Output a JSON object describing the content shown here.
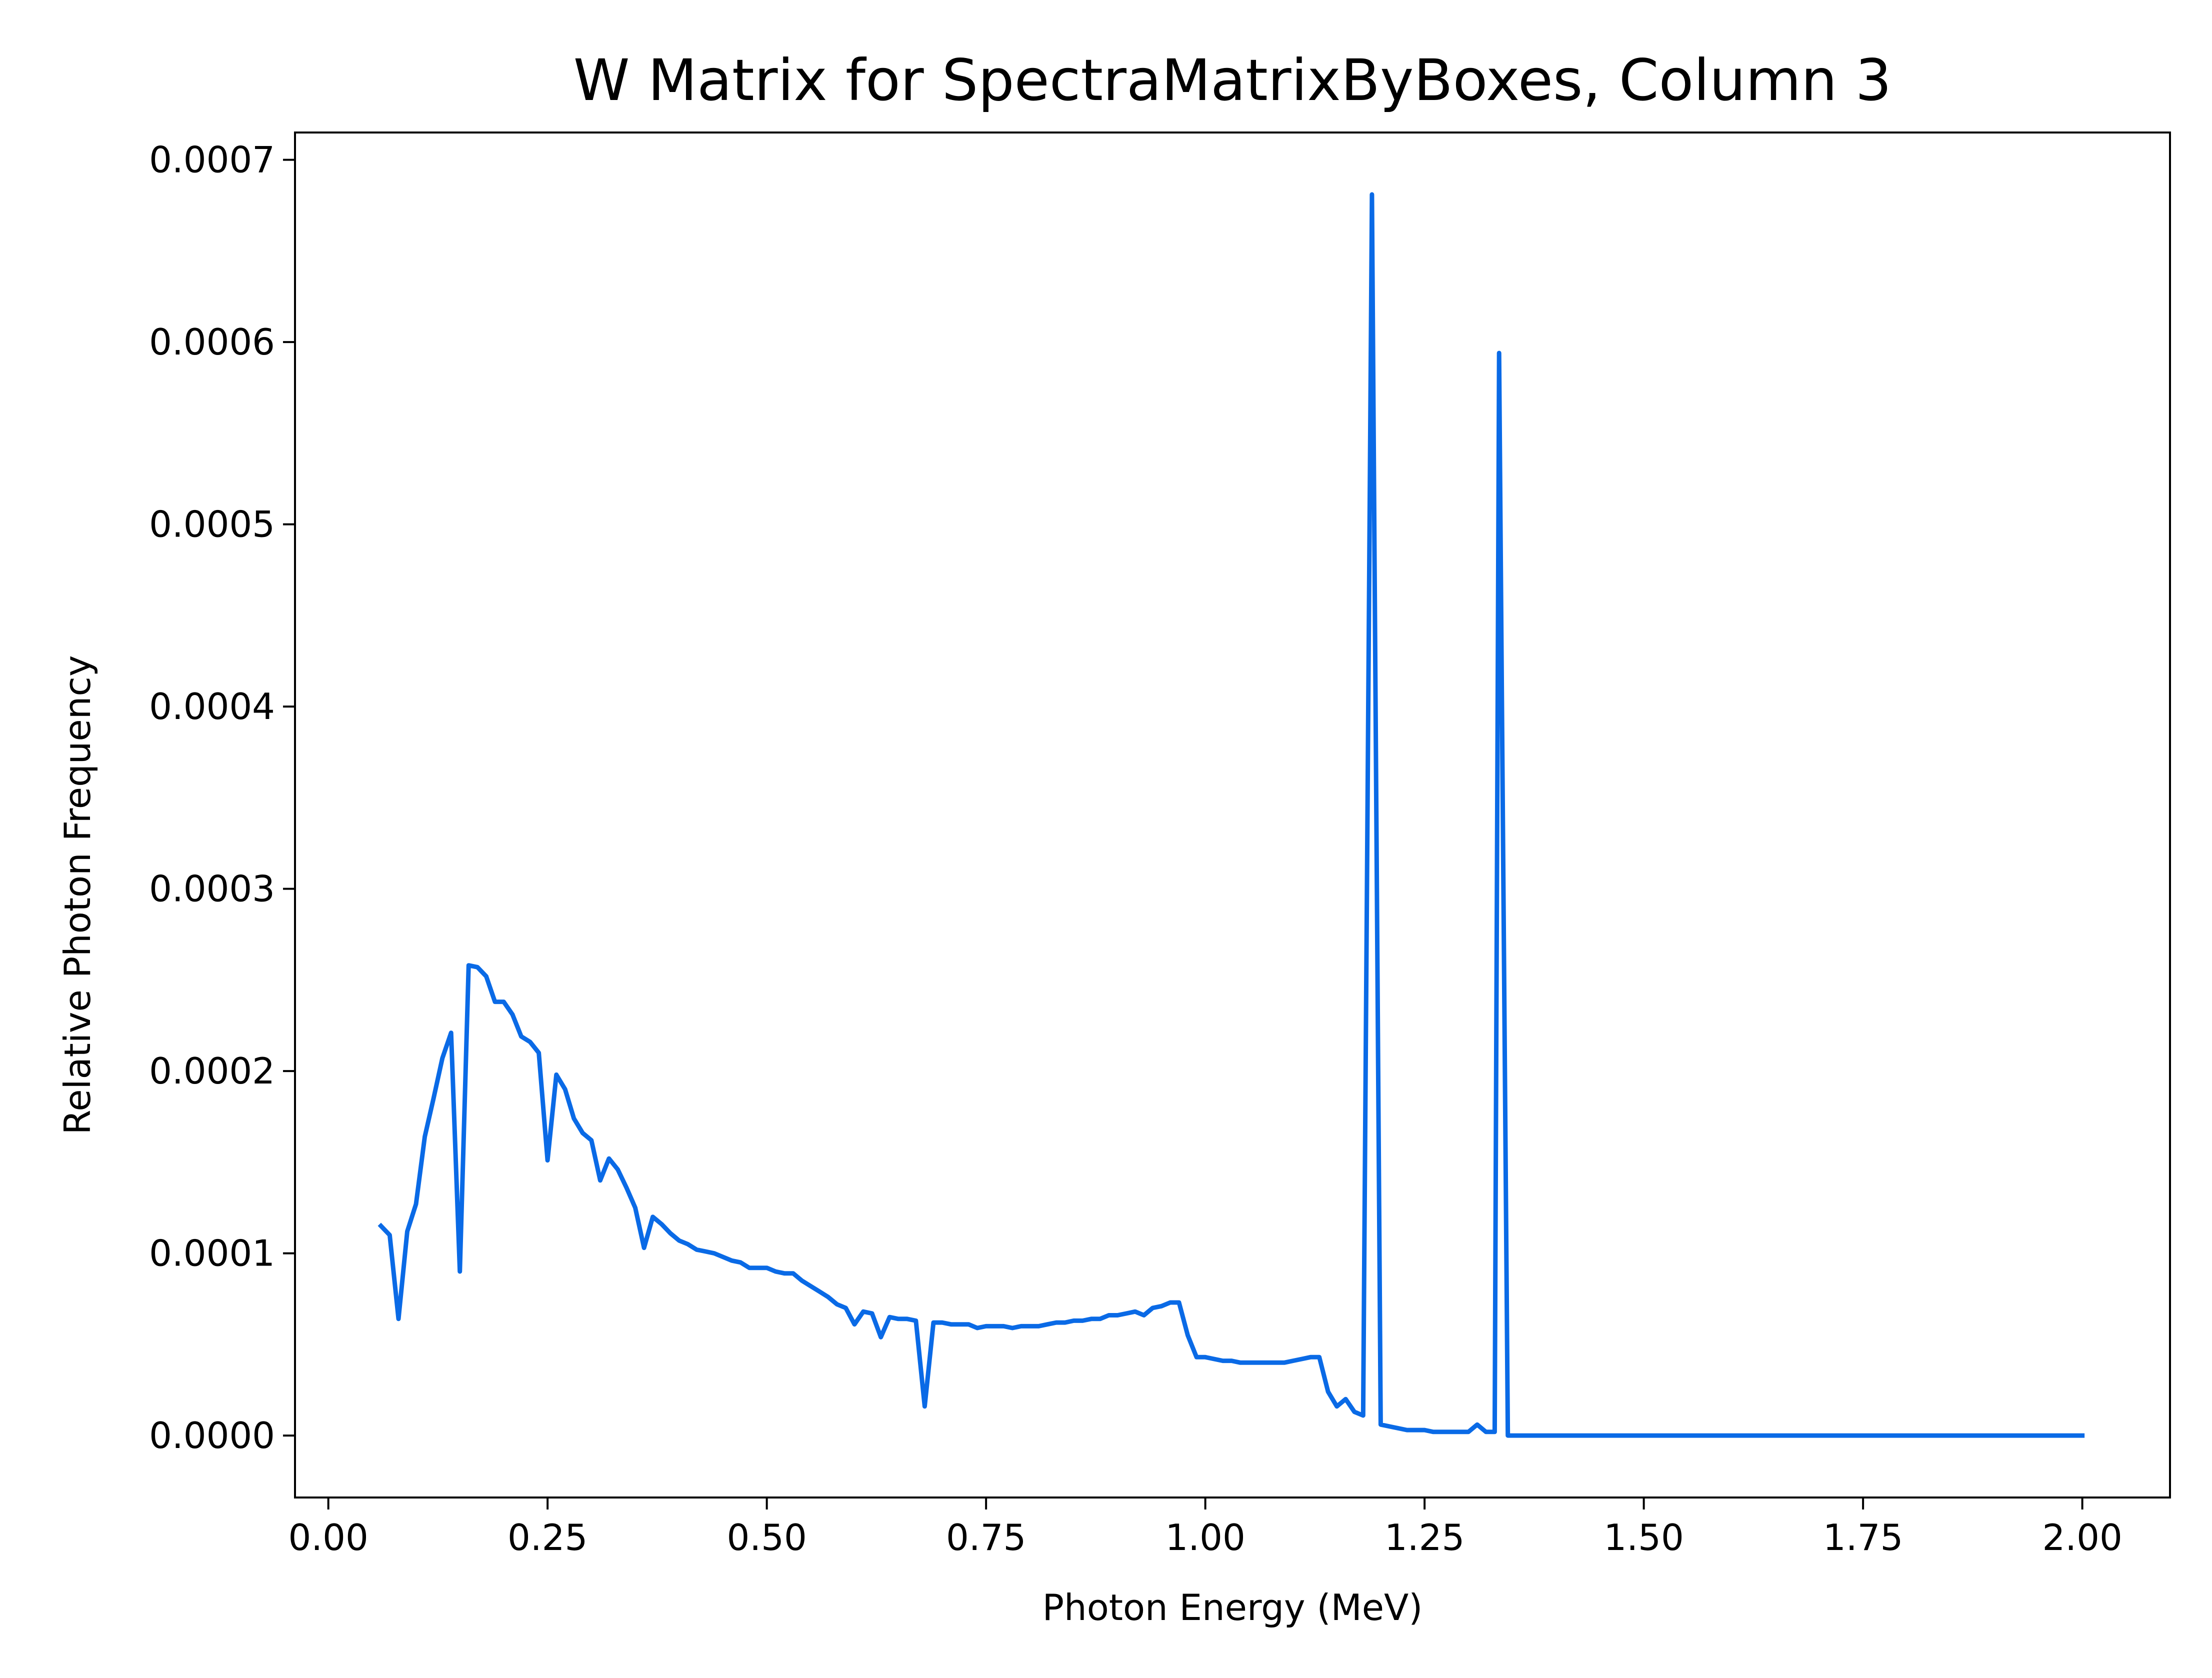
{
  "chart_data": {
    "type": "line",
    "title": "W Matrix for SpectraMatrixByBoxes, Column 3",
    "xlabel": "Photon Energy (MeV)",
    "ylabel": "Relative Photon Frequency",
    "xlim": [
      -0.038,
      2.1
    ],
    "ylim": [
      -3.4e-05,
      0.000715
    ],
    "grid": false,
    "legend": "none",
    "line_color": "#0a6ae6",
    "x_ticks": [
      {
        "value": 0.0,
        "label": "0.00"
      },
      {
        "value": 0.25,
        "label": "0.25"
      },
      {
        "value": 0.5,
        "label": "0.50"
      },
      {
        "value": 0.75,
        "label": "0.75"
      },
      {
        "value": 1.0,
        "label": "1.00"
      },
      {
        "value": 1.25,
        "label": "1.25"
      },
      {
        "value": 1.5,
        "label": "1.50"
      },
      {
        "value": 1.75,
        "label": "1.75"
      },
      {
        "value": 2.0,
        "label": "2.00"
      }
    ],
    "y_ticks": [
      {
        "value": 0.0,
        "label": "0.0000"
      },
      {
        "value": 0.0001,
        "label": "0.0001"
      },
      {
        "value": 0.0002,
        "label": "0.0002"
      },
      {
        "value": 0.0003,
        "label": "0.0003"
      },
      {
        "value": 0.0004,
        "label": "0.0004"
      },
      {
        "value": 0.0005,
        "label": "0.0005"
      },
      {
        "value": 0.0006,
        "label": "0.0006"
      },
      {
        "value": 0.0007,
        "label": "0.0007"
      }
    ],
    "series": [
      {
        "x": [
          0.06,
          0.07,
          0.08,
          0.09,
          0.1,
          0.11,
          0.12,
          0.13,
          0.14,
          0.15,
          0.16,
          0.17,
          0.18,
          0.19,
          0.2,
          0.21,
          0.22,
          0.23,
          0.24,
          0.25,
          0.26,
          0.27,
          0.28,
          0.29,
          0.3,
          0.31,
          0.32,
          0.33,
          0.34,
          0.35,
          0.36,
          0.37,
          0.38,
          0.39,
          0.4,
          0.41,
          0.42,
          0.43,
          0.44,
          0.45,
          0.46,
          0.47,
          0.48,
          0.49,
          0.5,
          0.51,
          0.52,
          0.53,
          0.54,
          0.55,
          0.56,
          0.57,
          0.58,
          0.59,
          0.6,
          0.61,
          0.62,
          0.63,
          0.64,
          0.65,
          0.66,
          0.67,
          0.68,
          0.69,
          0.7,
          0.71,
          0.72,
          0.73,
          0.74,
          0.75,
          0.76,
          0.77,
          0.78,
          0.79,
          0.8,
          0.81,
          0.82,
          0.83,
          0.84,
          0.85,
          0.86,
          0.87,
          0.88,
          0.89,
          0.9,
          0.91,
          0.92,
          0.93,
          0.94,
          0.95,
          0.96,
          0.97,
          0.98,
          0.99,
          1.0,
          1.01,
          1.02,
          1.03,
          1.04,
          1.05,
          1.06,
          1.07,
          1.08,
          1.09,
          1.1,
          1.11,
          1.12,
          1.13,
          1.14,
          1.15,
          1.16,
          1.17,
          1.18,
          1.19,
          1.2,
          1.21,
          1.22,
          1.23,
          1.24,
          1.25,
          1.26,
          1.27,
          1.28,
          1.29,
          1.3,
          1.31,
          1.32,
          1.33,
          1.335,
          1.345,
          1.36,
          2.0
        ],
        "y": [
          0.000115,
          0.00011,
          6.4e-05,
          0.000112,
          0.000127,
          0.000164,
          0.000185,
          0.000207,
          0.000221,
          9e-05,
          0.000258,
          0.000257,
          0.000252,
          0.000238,
          0.000238,
          0.000231,
          0.000219,
          0.000216,
          0.00021,
          0.000151,
          0.000198,
          0.00019,
          0.000174,
          0.000166,
          0.000162,
          0.00014,
          0.000152,
          0.000146,
          0.000136,
          0.000125,
          0.000103,
          0.00012,
          0.000116,
          0.000111,
          0.000107,
          0.000105,
          0.000102,
          0.000101,
          0.0001,
          9.8e-05,
          9.6e-05,
          9.5e-05,
          9.2e-05,
          9.2e-05,
          9.2e-05,
          9e-05,
          8.9e-05,
          8.9e-05,
          8.5e-05,
          8.2e-05,
          7.9e-05,
          7.6e-05,
          7.2e-05,
          7e-05,
          6.1e-05,
          6.8e-05,
          6.7e-05,
          5.4e-05,
          6.5e-05,
          6.4e-05,
          6.4e-05,
          6.3e-05,
          1.6e-05,
          6.2e-05,
          6.2e-05,
          6.1e-05,
          6.1e-05,
          6.1e-05,
          5.9e-05,
          6e-05,
          6e-05,
          6e-05,
          5.9e-05,
          6e-05,
          6e-05,
          6e-05,
          6.1e-05,
          6.2e-05,
          6.2e-05,
          6.3e-05,
          6.3e-05,
          6.4e-05,
          6.4e-05,
          6.6e-05,
          6.6e-05,
          6.7e-05,
          6.8e-05,
          6.6e-05,
          7e-05,
          7.1e-05,
          7.3e-05,
          7.3e-05,
          5.5e-05,
          4.3e-05,
          4.3e-05,
          4.2e-05,
          4.1e-05,
          4.1e-05,
          4e-05,
          4e-05,
          4e-05,
          4e-05,
          4e-05,
          4e-05,
          4.1e-05,
          4.2e-05,
          4.3e-05,
          4.3e-05,
          2.4e-05,
          1.6e-05,
          2e-05,
          1.3e-05,
          1.1e-05,
          0.000681,
          6e-06,
          5e-06,
          4e-06,
          3e-06,
          3e-06,
          3e-06,
          2e-06,
          2e-06,
          2e-06,
          2e-06,
          2e-06,
          6e-06,
          2e-06,
          2e-06,
          0.000594,
          0.0,
          0.0,
          0.0
        ]
      }
    ]
  }
}
